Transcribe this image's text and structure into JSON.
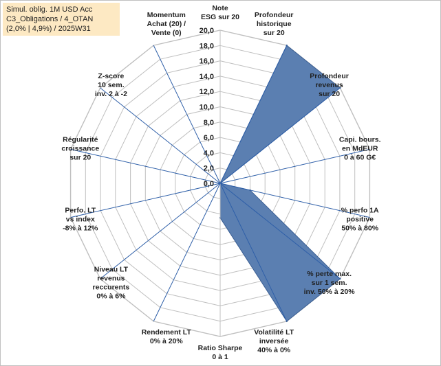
{
  "title_lines": [
    "Simul. oblig. 1M USD Acc",
    "C3_Obligations / 4_OTAN",
    "(2,0% | 4,9%) / 2025W31"
  ],
  "colors": {
    "fill": "#5b7fb1",
    "stroke": "#3b5f93",
    "grid": "#bfbfbf",
    "spoke_highlight": "#2e5fa8",
    "title_bg": "#fde9c3"
  },
  "chart_data": {
    "type": "radar",
    "rmin": 0,
    "rmax": 20,
    "tick_step": 2,
    "tick_labels": [
      "0,0",
      "2,0",
      "4,0",
      "6,0",
      "8,0",
      "10,0",
      "12,0",
      "14,0",
      "16,0",
      "18,0",
      "20,0"
    ],
    "axes": [
      {
        "lines": [
          "Note",
          "ESG sur 20"
        ],
        "value": 0
      },
      {
        "lines": [
          "Profondeur",
          "historique",
          "sur 20"
        ],
        "value": 20
      },
      {
        "lines": [
          "Profondeur",
          "revenus",
          "sur 20"
        ],
        "value": 20
      },
      {
        "lines": [
          "Capi. bours.",
          "en MdEUR",
          "0 à 60 G€"
        ],
        "value": 0
      },
      {
        "lines": [
          "% perfo 1A",
          "positive",
          "50% à 80%"
        ],
        "value": 4
      },
      {
        "lines": [
          "% perte max.",
          "sur 1 sem.",
          "inv. 50% à 20%"
        ],
        "value": 20
      },
      {
        "lines": [
          "Volatilité LT",
          "inversée",
          "40% à 0%"
        ],
        "value": 20
      },
      {
        "lines": [
          "Ratio Sharpe",
          "0 à 1"
        ],
        "value": 4.5
      },
      {
        "lines": [
          "Rendement LT",
          "0% à 20%"
        ],
        "value": 0
      },
      {
        "lines": [
          "Niveau LT",
          "revenus",
          "reccurents",
          "0% à 6%"
        ],
        "value": 0
      },
      {
        "lines": [
          "Perfo. LT",
          "vs index",
          "-8% à 12%"
        ],
        "value": 0
      },
      {
        "lines": [
          "Régularité",
          "croissance",
          "sur 20"
        ],
        "value": 0
      },
      {
        "lines": [
          "Z-score",
          "10 sem.",
          "inv. 2 à -2"
        ],
        "value": 0
      },
      {
        "lines": [
          "Momentum",
          "Achat (20) /",
          "Vente (0)"
        ],
        "value": 0
      }
    ]
  }
}
